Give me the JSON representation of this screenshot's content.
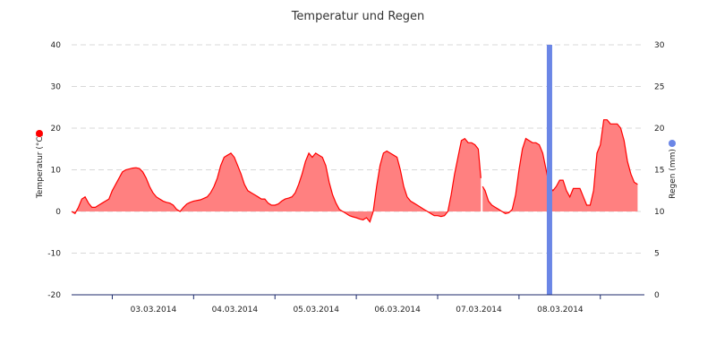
{
  "chart_data": {
    "type": "area",
    "title": "Temperatur und Regen",
    "y_left": {
      "label": "Temperatur (°C)",
      "min": -20,
      "max": 40,
      "ticks": [
        -20,
        -10,
        0,
        10,
        20,
        30,
        40
      ]
    },
    "y_right": {
      "label": "Regen (mm)",
      "min": 0,
      "max": 30,
      "ticks": [
        0,
        5,
        10,
        15,
        20,
        25,
        30
      ]
    },
    "x_range": [
      "2014-03-02 12:00",
      "2014-03-09 13:00"
    ],
    "x_tick_labels": [
      {
        "t": "2014-03-03 00:00",
        "label": "03.03.2014"
      },
      {
        "t": "2014-03-04 00:00",
        "label": "04.03.2014"
      },
      {
        "t": "2014-03-05 00:00",
        "label": "05.03.2014"
      },
      {
        "t": "2014-03-06 00:00",
        "label": "06.03.2014"
      },
      {
        "t": "2014-03-07 00:00",
        "label": "07.03.2014"
      },
      {
        "t": "2014-03-08 00:00",
        "label": "08.03.2014"
      }
    ],
    "grid": true,
    "colors": {
      "temperature": "#ff0000",
      "temperature_fill": "#ff8080",
      "rain": "#6b86e6",
      "grid": "#d8d8d8",
      "axis": "#1c2a6b"
    },
    "series": [
      {
        "axis": "left",
        "segments": [
          [
            [
              "2014-03-02 12:00",
              0
            ],
            [
              "2014-03-02 13:00",
              -0.5
            ],
            [
              "2014-03-02 14:00",
              1
            ],
            [
              "2014-03-02 15:00",
              3
            ],
            [
              "2014-03-02 16:00",
              3.5
            ],
            [
              "2014-03-02 17:00",
              2
            ],
            [
              "2014-03-02 18:00",
              1
            ],
            [
              "2014-03-02 19:00",
              1
            ],
            [
              "2014-03-02 20:00",
              1.5
            ],
            [
              "2014-03-02 21:00",
              2
            ],
            [
              "2014-03-02 22:00",
              2.5
            ],
            [
              "2014-03-02 23:00",
              3
            ],
            [
              "2014-03-03 00:00",
              5
            ],
            [
              "2014-03-03 01:00",
              6.5
            ],
            [
              "2014-03-03 02:00",
              8
            ],
            [
              "2014-03-03 03:00",
              9.5
            ],
            [
              "2014-03-03 04:00",
              10
            ],
            [
              "2014-03-03 05:00",
              10.2
            ],
            [
              "2014-03-03 06:00",
              10.4
            ],
            [
              "2014-03-03 07:00",
              10.5
            ],
            [
              "2014-03-03 08:00",
              10.3
            ],
            [
              "2014-03-03 09:00",
              9.5
            ],
            [
              "2014-03-03 10:00",
              8
            ],
            [
              "2014-03-03 11:00",
              6
            ],
            [
              "2014-03-03 12:00",
              4.5
            ],
            [
              "2014-03-03 13:00",
              3.5
            ],
            [
              "2014-03-03 14:00",
              3
            ],
            [
              "2014-03-03 15:00",
              2.5
            ],
            [
              "2014-03-03 16:00",
              2.2
            ],
            [
              "2014-03-03 17:00",
              2
            ],
            [
              "2014-03-03 18:00",
              1.5
            ],
            [
              "2014-03-03 19:00",
              0.5
            ],
            [
              "2014-03-03 20:00",
              0
            ],
            [
              "2014-03-03 21:00",
              1
            ],
            [
              "2014-03-03 22:00",
              1.8
            ],
            [
              "2014-03-03 23:00",
              2.2
            ],
            [
              "2014-03-04 00:00",
              2.5
            ],
            [
              "2014-03-04 02:00",
              2.8
            ],
            [
              "2014-03-04 04:00",
              3.5
            ],
            [
              "2014-03-04 05:00",
              4.5
            ],
            [
              "2014-03-04 06:00",
              6
            ],
            [
              "2014-03-04 07:00",
              8
            ],
            [
              "2014-03-04 08:00",
              11
            ],
            [
              "2014-03-04 09:00",
              13
            ],
            [
              "2014-03-04 10:00",
              13.5
            ],
            [
              "2014-03-04 11:00",
              14
            ],
            [
              "2014-03-04 12:00",
              13
            ],
            [
              "2014-03-04 13:00",
              11
            ],
            [
              "2014-03-04 14:00",
              9
            ],
            [
              "2014-03-04 15:00",
              6.5
            ],
            [
              "2014-03-04 16:00",
              5
            ],
            [
              "2014-03-04 17:00",
              4.5
            ],
            [
              "2014-03-04 18:00",
              4
            ],
            [
              "2014-03-04 19:00",
              3.5
            ],
            [
              "2014-03-04 20:00",
              3
            ],
            [
              "2014-03-04 21:00",
              3
            ],
            [
              "2014-03-04 22:00",
              2
            ],
            [
              "2014-03-04 23:00",
              1.5
            ],
            [
              "2014-03-05 00:00",
              1.5
            ],
            [
              "2014-03-05 01:00",
              1.8
            ],
            [
              "2014-03-05 02:00",
              2.5
            ],
            [
              "2014-03-05 03:00",
              3
            ],
            [
              "2014-03-05 04:00",
              3.2
            ],
            [
              "2014-03-05 05:00",
              3.5
            ],
            [
              "2014-03-05 06:00",
              4.5
            ],
            [
              "2014-03-05 07:00",
              6.5
            ],
            [
              "2014-03-05 08:00",
              9
            ],
            [
              "2014-03-05 09:00",
              12
            ],
            [
              "2014-03-05 10:00",
              14
            ],
            [
              "2014-03-05 11:00",
              13
            ],
            [
              "2014-03-05 12:00",
              14
            ],
            [
              "2014-03-05 13:00",
              13.5
            ],
            [
              "2014-03-05 14:00",
              13
            ],
            [
              "2014-03-05 15:00",
              11
            ],
            [
              "2014-03-05 16:00",
              7
            ],
            [
              "2014-03-05 17:00",
              4
            ],
            [
              "2014-03-05 18:00",
              2
            ],
            [
              "2014-03-05 19:00",
              0.5
            ],
            [
              "2014-03-05 20:00",
              0
            ],
            [
              "2014-03-05 21:00",
              -0.5
            ],
            [
              "2014-03-05 22:00",
              -1
            ],
            [
              "2014-03-05 23:00",
              -1.3
            ],
            [
              "2014-03-06 00:00",
              -1.5
            ],
            [
              "2014-03-06 01:00",
              -1.8
            ],
            [
              "2014-03-06 02:00",
              -2
            ],
            [
              "2014-03-06 03:00",
              -1.5
            ],
            [
              "2014-03-06 04:00",
              -2.5
            ],
            [
              "2014-03-06 05:00",
              0
            ],
            [
              "2014-03-06 06:00",
              6
            ],
            [
              "2014-03-06 07:00",
              11
            ],
            [
              "2014-03-06 08:00",
              14
            ],
            [
              "2014-03-06 09:00",
              14.5
            ],
            [
              "2014-03-06 10:00",
              14
            ],
            [
              "2014-03-06 11:00",
              13.5
            ],
            [
              "2014-03-06 12:00",
              13
            ],
            [
              "2014-03-06 13:00",
              10
            ],
            [
              "2014-03-06 14:00",
              6
            ],
            [
              "2014-03-06 15:00",
              3.5
            ],
            [
              "2014-03-06 16:00",
              2.5
            ],
            [
              "2014-03-06 17:00",
              2
            ],
            [
              "2014-03-06 18:00",
              1.5
            ],
            [
              "2014-03-06 19:00",
              1
            ],
            [
              "2014-03-06 20:00",
              0.5
            ],
            [
              "2014-03-06 21:00",
              0
            ],
            [
              "2014-03-06 22:00",
              -0.5
            ],
            [
              "2014-03-06 23:00",
              -1
            ],
            [
              "2014-03-07 00:00",
              -1
            ],
            [
              "2014-03-07 01:00",
              -1.2
            ],
            [
              "2014-03-07 02:00",
              -1
            ],
            [
              "2014-03-07 03:00",
              0
            ],
            [
              "2014-03-07 04:00",
              4
            ],
            [
              "2014-03-07 05:00",
              9
            ],
            [
              "2014-03-07 06:00",
              13
            ],
            [
              "2014-03-07 07:00",
              17
            ],
            [
              "2014-03-07 08:00",
              17.5
            ],
            [
              "2014-03-07 09:00",
              16.5
            ],
            [
              "2014-03-07 10:00",
              16.5
            ],
            [
              "2014-03-07 11:00",
              16
            ],
            [
              "2014-03-07 12:00",
              15
            ],
            [
              "2014-03-07 12:45",
              8
            ]
          ],
          [
            [
              "2014-03-07 13:15",
              6
            ],
            [
              "2014-03-07 14:00",
              5
            ],
            [
              "2014-03-07 15:00",
              2.5
            ],
            [
              "2014-03-07 16:00",
              1.5
            ],
            [
              "2014-03-07 17:00",
              1
            ],
            [
              "2014-03-07 18:00",
              0.5
            ],
            [
              "2014-03-07 19:00",
              0
            ],
            [
              "2014-03-07 20:00",
              -0.5
            ],
            [
              "2014-03-07 21:00",
              -0.3
            ],
            [
              "2014-03-07 22:00",
              0.5
            ],
            [
              "2014-03-07 23:00",
              4
            ],
            [
              "2014-03-08 00:00",
              10
            ],
            [
              "2014-03-08 01:00",
              15
            ],
            [
              "2014-03-08 02:00",
              17.5
            ],
            [
              "2014-03-08 03:00",
              17
            ],
            [
              "2014-03-08 04:00",
              16.5
            ],
            [
              "2014-03-08 05:00",
              16.5
            ],
            [
              "2014-03-08 06:00",
              16
            ],
            [
              "2014-03-08 07:00",
              14
            ],
            [
              "2014-03-08 08:00",
              10
            ],
            [
              "2014-03-08 09:00",
              6
            ],
            [
              "2014-03-08 10:00",
              5
            ],
            [
              "2014-03-08 11:00",
              6
            ],
            [
              "2014-03-08 12:00",
              7.5
            ],
            [
              "2014-03-08 13:00",
              7.5
            ],
            [
              "2014-03-08 14:00",
              5
            ],
            [
              "2014-03-08 15:00",
              3.5
            ],
            [
              "2014-03-08 16:00",
              5.5
            ],
            [
              "2014-03-08 17:00",
              5.5
            ],
            [
              "2014-03-08 18:00",
              5.5
            ],
            [
              "2014-03-08 19:00",
              3.5
            ],
            [
              "2014-03-08 20:00",
              1.5
            ],
            [
              "2014-03-08 21:00",
              1.5
            ],
            [
              "2014-03-08 22:00",
              5
            ],
            [
              "2014-03-08 23:00",
              14
            ],
            [
              "2014-03-09 00:00",
              16
            ],
            [
              "2014-03-09 01:00",
              22
            ],
            [
              "2014-03-09 02:00",
              22
            ],
            [
              "2014-03-09 03:00",
              21
            ],
            [
              "2014-03-09 04:00",
              21
            ],
            [
              "2014-03-09 05:00",
              21
            ],
            [
              "2014-03-09 06:00",
              20
            ],
            [
              "2014-03-09 07:00",
              17
            ],
            [
              "2014-03-09 08:00",
              12
            ],
            [
              "2014-03-09 09:00",
              9
            ],
            [
              "2014-03-09 10:00",
              7
            ],
            [
              "2014-03-09 11:00",
              6.5
            ]
          ]
        ]
      },
      {
        "axis": "right",
        "type": "bar",
        "x": "2014-03-08 09:00",
        "value": 30
      }
    ]
  }
}
